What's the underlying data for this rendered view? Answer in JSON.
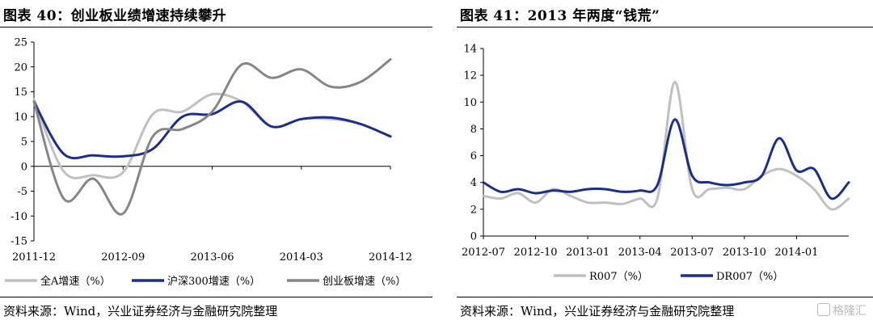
{
  "left": {
    "title": "图表 40：创业板业绩增速持续攀升",
    "source": "资料来源：Wind，兴业证券经济与金融研究院整理",
    "chart_data": {
      "type": "line",
      "x": [
        "2011-12",
        "2012-03",
        "2012-06",
        "2012-09",
        "2012-12",
        "2013-03",
        "2013-06",
        "2013-09",
        "2013-12",
        "2014-03",
        "2014-06",
        "2014-09",
        "2014-12"
      ],
      "xticks": [
        "2011-12",
        "2012-09",
        "2013-06",
        "2014-03",
        "2014-12"
      ],
      "ylim": [
        -15,
        25
      ],
      "yticks": [
        -15,
        -10,
        -5,
        0,
        5,
        10,
        15,
        20,
        25
      ],
      "series": [
        {
          "name": "全A增速（%）",
          "color": "#c0c0c0",
          "values": [
            13.5,
            -1.0,
            -1.8,
            -1.2,
            10.5,
            11.0,
            14.5,
            13.0,
            8.0,
            9.5,
            9.5,
            8.5,
            6.0
          ]
        },
        {
          "name": "沪深300增速（%）",
          "color": "#1a2f8a",
          "values": [
            13.0,
            2.5,
            2.2,
            2.0,
            3.5,
            10.0,
            10.5,
            13.0,
            8.0,
            9.5,
            9.8,
            8.5,
            6.0
          ]
        },
        {
          "name": "创业板增速（%）",
          "color": "#868686",
          "values": [
            13.0,
            -6.5,
            -2.5,
            -9.5,
            6.0,
            7.5,
            11.0,
            20.5,
            17.8,
            19.5,
            16.0,
            17.0,
            21.5
          ]
        }
      ]
    }
  },
  "right": {
    "title": "图表 41：2013 年两度“钱荒”",
    "source": "资料来源：Wind，兴业证券经济与金融研究院整理",
    "watermark": "格隆汇",
    "chart_data": {
      "type": "line",
      "x": [
        "2012-07",
        "2012-08",
        "2012-09",
        "2012-10",
        "2012-11",
        "2012-12",
        "2013-01",
        "2013-02",
        "2013-03",
        "2013-04",
        "2013-05",
        "2013-06",
        "2013-07",
        "2013-08",
        "2013-09",
        "2013-10",
        "2013-11",
        "2013-12",
        "2014-01",
        "2014-02",
        "2014-03",
        "2014-04"
      ],
      "xticks": [
        "2012-07",
        "2012-10",
        "2013-01",
        "2013-04",
        "2013-07",
        "2013-10",
        "2014-01"
      ],
      "ylim": [
        0,
        14
      ],
      "yticks": [
        0,
        2,
        4,
        6,
        8,
        10,
        12,
        14
      ],
      "series": [
        {
          "name": "R007（%）",
          "color": "#c0c0c0",
          "values": [
            3.0,
            2.8,
            3.2,
            2.5,
            3.5,
            3.0,
            2.5,
            2.5,
            2.4,
            2.8,
            2.8,
            11.5,
            3.5,
            3.5,
            3.6,
            3.5,
            4.5,
            5.0,
            4.5,
            3.5,
            2.0,
            2.8
          ]
        },
        {
          "name": "DR007（%）",
          "color": "#1a2f8a",
          "values": [
            4.0,
            3.3,
            3.5,
            3.2,
            3.4,
            3.3,
            3.5,
            3.5,
            3.3,
            3.4,
            3.8,
            8.7,
            4.5,
            4.0,
            3.8,
            4.0,
            4.5,
            7.3,
            4.9,
            5.0,
            2.8,
            4.0
          ]
        }
      ]
    }
  }
}
